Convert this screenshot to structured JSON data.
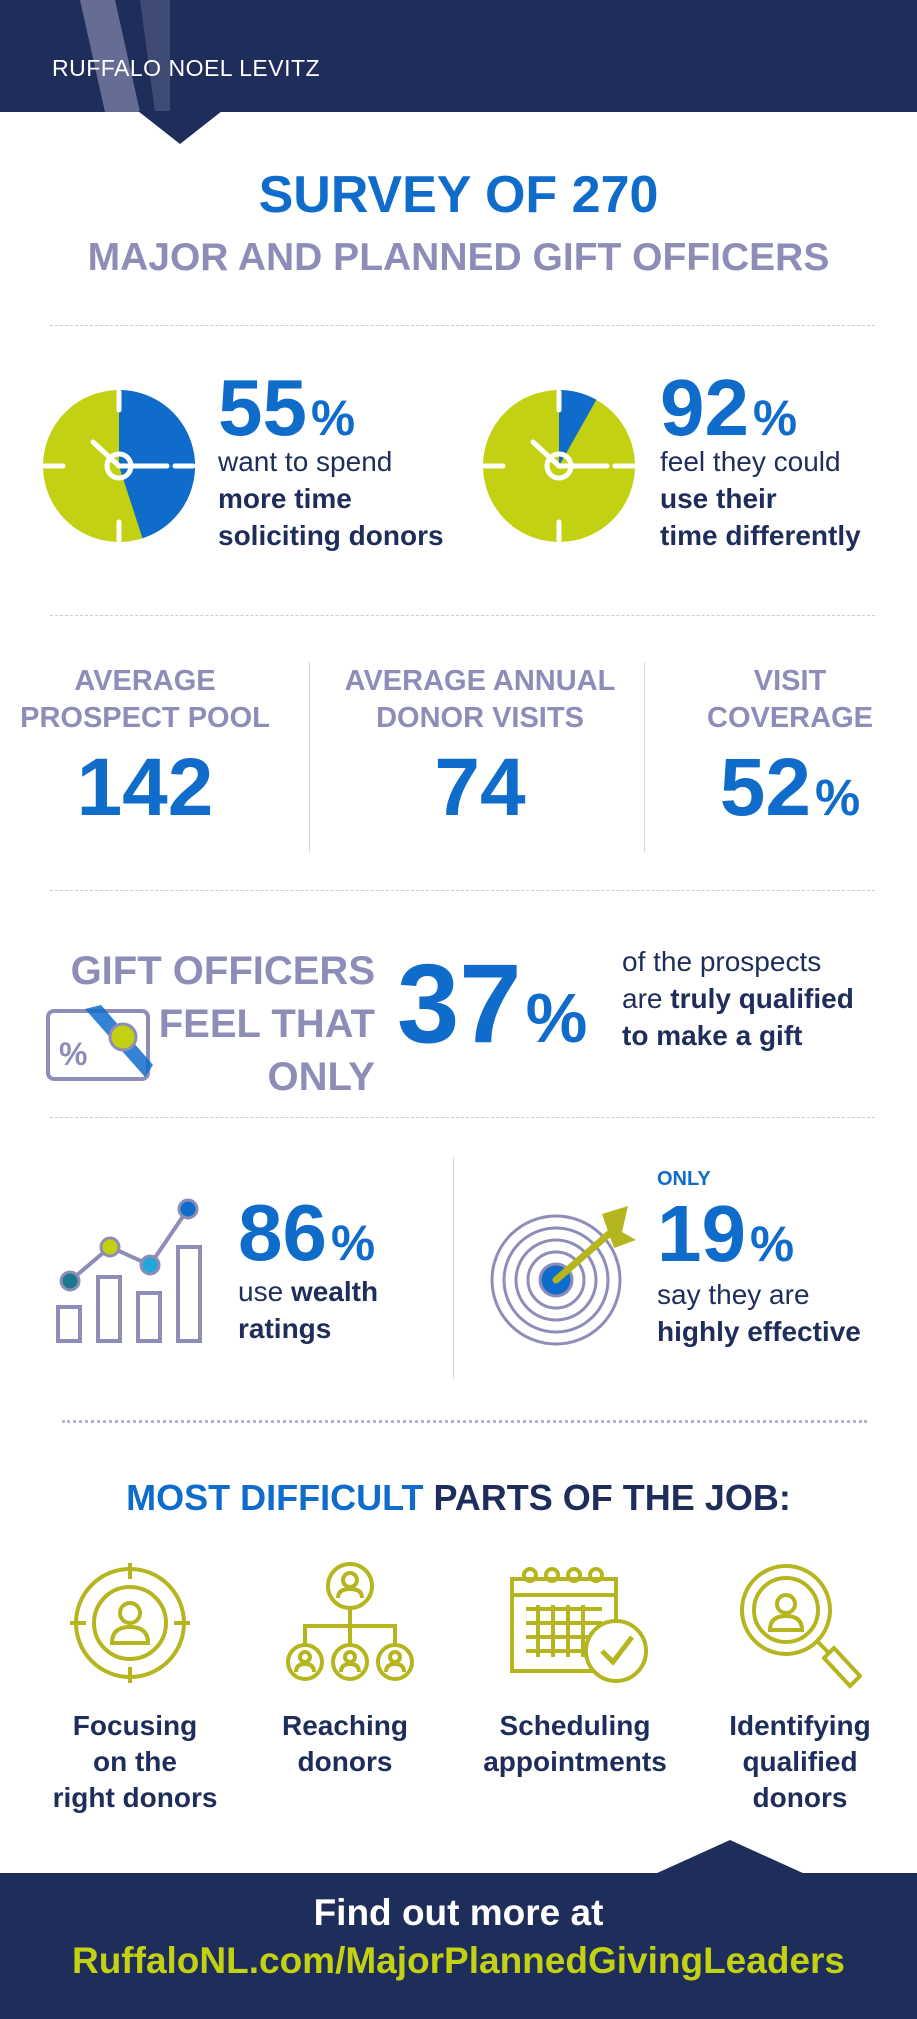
{
  "header": {
    "brand": "RUFFALO NOEL LEVITZ"
  },
  "title": {
    "line1": "SURVEY OF 270",
    "line2": "MAJOR AND PLANNED GIFT OFFICERS"
  },
  "clock_stats": [
    {
      "number": "55",
      "unit": "%",
      "value": 55,
      "line1": "want to spend",
      "line2": "more time",
      "line3": "soliciting donors"
    },
    {
      "number": "92",
      "unit": "%",
      "value": 92,
      "line1": "feel they could",
      "line2": "use their",
      "line3": "time differently"
    }
  ],
  "averages": [
    {
      "label1": "AVERAGE",
      "label2": "PROSPECT POOL",
      "number": "142",
      "unit": ""
    },
    {
      "label1": "AVERAGE ANNUAL",
      "label2": "DONOR VISITS",
      "number": "74",
      "unit": ""
    },
    {
      "label1": "VISIT",
      "label2": "COVERAGE",
      "number": "52",
      "unit": "%"
    }
  ],
  "qualified": {
    "lead1": "GIFT OFFICERS",
    "lead2": "FEEL THAT",
    "lead3": "ONLY",
    "number": "37",
    "unit": "%",
    "text1": "of the prospects",
    "text2_plain": "are ",
    "text2_bold": "truly qualified",
    "text3": "to make a gift"
  },
  "wealth": {
    "number": "86",
    "unit": "%",
    "line1_plain": "use ",
    "line1_bold": "wealth",
    "line2": "ratings"
  },
  "effective": {
    "kicker": "ONLY",
    "number": "19",
    "unit": "%",
    "line1": "say they are",
    "line2": "highly effective"
  },
  "difficult": {
    "heading_blue": "MOST DIFFICULT",
    "heading_navy": " PARTS OF THE JOB:",
    "items": [
      {
        "lines": [
          "Focusing",
          "on the",
          "right donors"
        ]
      },
      {
        "lines": [
          "Reaching",
          "donors"
        ]
      },
      {
        "lines": [
          "Scheduling",
          "appointments"
        ]
      },
      {
        "lines": [
          "Identifying",
          "qualified",
          "donors"
        ]
      }
    ]
  },
  "footer": {
    "line1": "Find out more at",
    "url": "RuffaloNL.com/MajorPlannedGivingLeaders"
  },
  "colors": {
    "navy": "#1e2d5a",
    "blue": "#0f6ccb",
    "lime": "#c2d112",
    "lavender": "#8d8db7",
    "olive": "#b5b51f"
  },
  "chart_data": [
    {
      "type": "pie",
      "categories": [
        "more time soliciting donors",
        "other"
      ],
      "values": [
        55,
        45
      ]
    },
    {
      "type": "pie",
      "categories": [
        "time differently",
        "other"
      ],
      "values": [
        92,
        8
      ]
    }
  ]
}
